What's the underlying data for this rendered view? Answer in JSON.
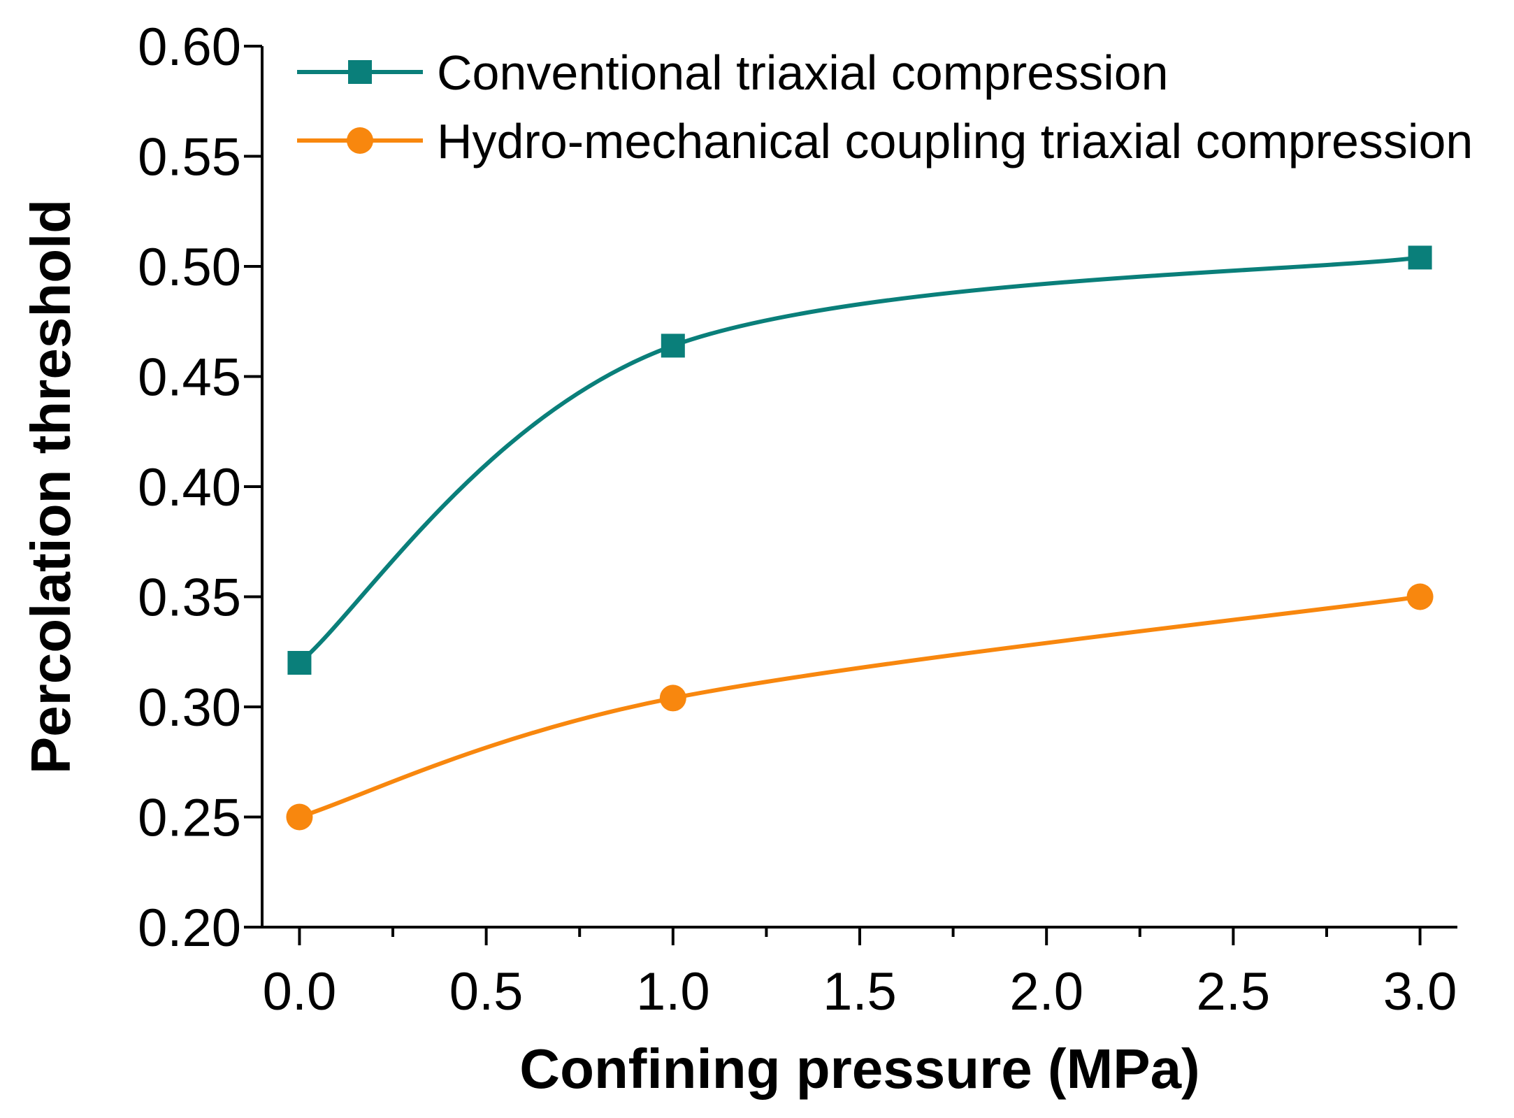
{
  "chart_data": {
    "type": "line",
    "title": "",
    "xlabel": "Confining pressure (MPa)",
    "ylabel": "Percolation threshold",
    "xlim": [
      -0.1,
      3.1
    ],
    "ylim": [
      0.2,
      0.6
    ],
    "x_ticks": [
      0.0,
      0.5,
      1.0,
      1.5,
      2.0,
      2.5,
      3.0
    ],
    "x_tick_labels": [
      "0.0",
      "0.5",
      "1.0",
      "1.5",
      "2.0",
      "2.5",
      "3.0"
    ],
    "y_ticks": [
      0.2,
      0.25,
      0.3,
      0.35,
      0.4,
      0.45,
      0.5,
      0.55,
      0.6
    ],
    "y_tick_labels": [
      "0.20",
      "0.25",
      "0.30",
      "0.35",
      "0.40",
      "0.45",
      "0.50",
      "0.55",
      "0.60"
    ],
    "x": [
      0.0,
      1.0,
      3.0
    ],
    "series": [
      {
        "name": "Conventional triaxial compression",
        "values": [
          0.32,
          0.464,
          0.504
        ],
        "color": "#0a7f7a",
        "marker": "square"
      },
      {
        "name": "Hydro-mechanical coupling triaxial compression",
        "values": [
          0.25,
          0.304,
          0.35
        ],
        "color": "#f8870e",
        "marker": "circle"
      }
    ],
    "legend_position": "top-left",
    "grid": false
  }
}
